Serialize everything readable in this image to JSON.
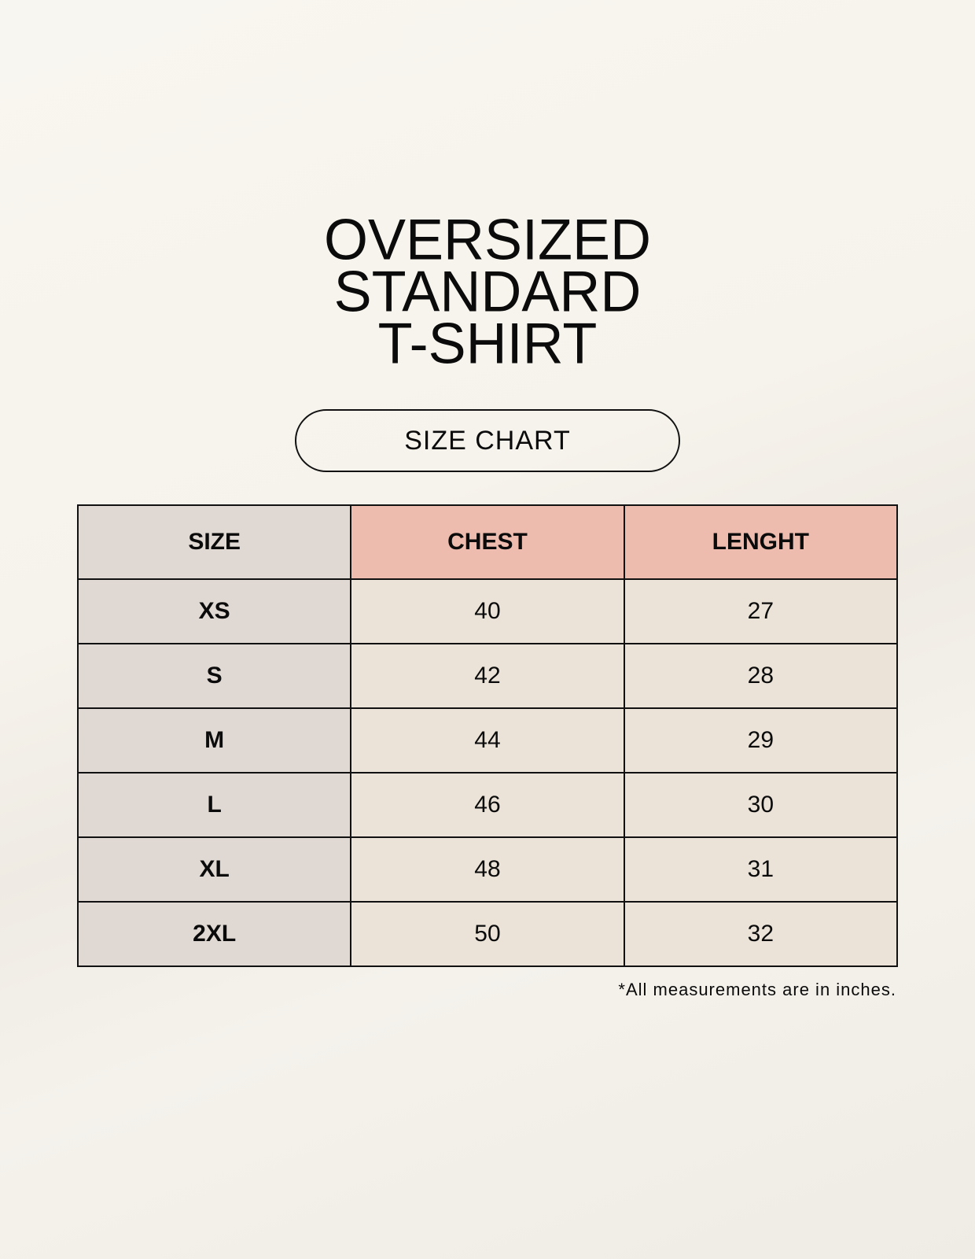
{
  "title": {
    "line1": "OVERSIZED",
    "line2": "STANDARD",
    "line3": "T-SHIRT"
  },
  "badge": "SIZE CHART",
  "table": {
    "headers": [
      "SIZE",
      "CHEST",
      "LENGHT"
    ],
    "rows": [
      [
        "XS",
        "40",
        "27"
      ],
      [
        "S",
        "42",
        "28"
      ],
      [
        "M",
        "44",
        "29"
      ],
      [
        "L",
        "46",
        "30"
      ],
      [
        "XL",
        "48",
        "31"
      ],
      [
        "2XL",
        "50",
        "32"
      ]
    ]
  },
  "footnote": "*All measurements are in inches.",
  "colors": {
    "size_column": "#e0d8d2",
    "header_accent": "#edbcae",
    "cell": "#ebe3d8"
  }
}
